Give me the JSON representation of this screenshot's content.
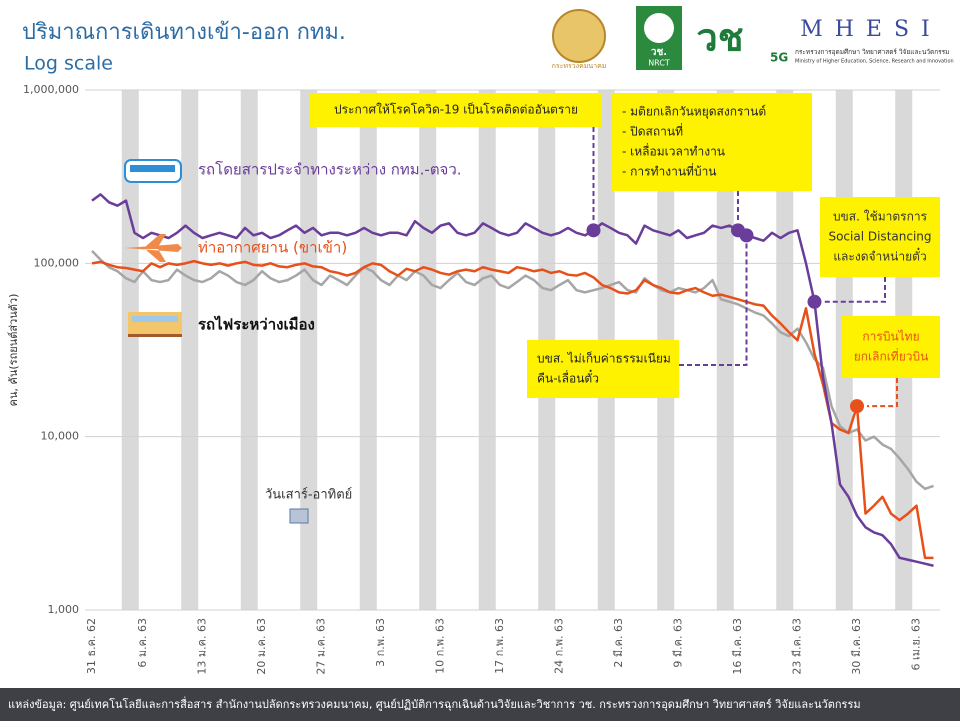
{
  "header": {
    "logos": [
      "กระทรวงคมนาคม",
      "วช.",
      "NRCT",
      "วช",
      "5G",
      "MHESI",
      "กระทรวงการอุดมศึกษา วิทยาศาสตร์ วิจัยและนวัตกรรม",
      "Ministry of Higher Education, Science, Research and Innovation"
    ]
  },
  "footer": {
    "source": "แหล่งข้อมูล:  ศูนย์เทคโนโลยีและการสื่อสาร สำนักงานปลัดกระทรวงคมนาคม, ศูนย์ปฏิบัติการฉุกเฉินด้านวิจัยและวิชาการ วช. กระทรวงการอุดมศึกษา วิทยาศาสตร์ วิจัยและนวัตกรรม"
  },
  "chart_data": {
    "type": "line",
    "title": "ปริมาณการเดินทางเข้า-ออก กทม.",
    "subtitle": "Log scale",
    "y_label": "คน, คัน(รถยนต์ส่วนตัว)",
    "log_y": true,
    "grid": true,
    "ylim": [
      1000,
      1000000
    ],
    "yticks": [
      {
        "value": 1000,
        "label": "1,000"
      },
      {
        "value": 10000,
        "label": "10,000"
      },
      {
        "value": 100000,
        "label": "100,000"
      },
      {
        "value": 1000000,
        "label": "1,000,000"
      }
    ],
    "categories": [
      "31 ธ.ค. 62",
      null,
      null,
      null,
      null,
      null,
      "6 ม.ค. 63",
      null,
      null,
      null,
      null,
      null,
      null,
      "13 ม.ค. 63",
      null,
      null,
      null,
      null,
      null,
      null,
      "20 ม.ค. 63",
      null,
      null,
      null,
      null,
      null,
      null,
      "27 ม.ค. 63",
      null,
      null,
      null,
      null,
      null,
      null,
      "3 ก.พ. 63",
      null,
      null,
      null,
      null,
      null,
      null,
      "10 ก.พ. 63",
      null,
      null,
      null,
      null,
      null,
      null,
      "17 ก.พ. 63",
      null,
      null,
      null,
      null,
      null,
      null,
      "24 ก.พ. 63",
      null,
      null,
      null,
      null,
      null,
      null,
      "2 มี.ค. 63",
      null,
      null,
      null,
      null,
      null,
      null,
      "9 มี.ค. 63",
      null,
      null,
      null,
      null,
      null,
      null,
      "16 มี.ค. 63",
      null,
      null,
      null,
      null,
      null,
      null,
      "23 มี.ค. 63",
      null,
      null,
      null,
      null,
      null,
      null,
      "30 มี.ค. 63",
      null,
      null,
      null,
      null,
      null,
      null,
      "6 เม.ย. 63",
      null,
      null
    ],
    "weekend": {
      "label": "วันเสาร์-อาทิตย์",
      "color": "#d9d9d9",
      "ranges": [
        [
          4,
          5
        ],
        [
          11,
          12
        ],
        [
          18,
          19
        ],
        [
          25,
          26
        ],
        [
          32,
          33
        ],
        [
          39,
          40
        ],
        [
          46,
          47
        ],
        [
          53,
          54
        ],
        [
          60,
          61
        ],
        [
          67,
          68
        ],
        [
          74,
          75
        ],
        [
          81,
          82
        ],
        [
          88,
          89
        ],
        [
          95,
          96
        ]
      ]
    },
    "series": [
      {
        "name": "รถโดยสารประจำทางระหว่าง กทม.-ตจว.",
        "color": "#6a3d9a",
        "values": [
          230000,
          250000,
          225000,
          215000,
          230000,
          150000,
          140000,
          150000,
          145000,
          140000,
          150000,
          165000,
          150000,
          140000,
          145000,
          150000,
          145000,
          140000,
          160000,
          145000,
          150000,
          140000,
          145000,
          155000,
          165000,
          150000,
          160000,
          145000,
          150000,
          150000,
          145000,
          150000,
          160000,
          150000,
          145000,
          150000,
          150000,
          145000,
          175000,
          160000,
          150000,
          165000,
          170000,
          150000,
          145000,
          150000,
          170000,
          160000,
          150000,
          145000,
          150000,
          170000,
          160000,
          150000,
          145000,
          150000,
          160000,
          150000,
          145000,
          155000,
          170000,
          160000,
          150000,
          145000,
          130000,
          165000,
          155000,
          150000,
          145000,
          155000,
          140000,
          145000,
          150000,
          165000,
          160000,
          165000,
          155000,
          145000,
          140000,
          135000,
          150000,
          140000,
          150000,
          155000,
          100000,
          60000,
          22000,
          12000,
          5300,
          4500,
          3500,
          3000,
          2800,
          2700,
          2400,
          2000,
          1950,
          1900,
          1850,
          1800
        ]
      },
      {
        "name": "ท่าอากาศยาน (ขาเข้า)",
        "color": "#e8501a",
        "values": [
          100000,
          102000,
          98000,
          95000,
          94000,
          92000,
          90000,
          100000,
          95000,
          100000,
          98000,
          100000,
          103000,
          100000,
          98000,
          100000,
          97000,
          100000,
          102000,
          98000,
          97000,
          100000,
          96000,
          95000,
          98000,
          100000,
          96000,
          95000,
          90000,
          88000,
          85000,
          88000,
          95000,
          100000,
          98000,
          90000,
          85000,
          93000,
          90000,
          95000,
          92000,
          88000,
          86000,
          90000,
          92000,
          90000,
          95000,
          92000,
          90000,
          88000,
          95000,
          93000,
          90000,
          92000,
          88000,
          90000,
          86000,
          85000,
          88000,
          83000,
          75000,
          72000,
          68000,
          67000,
          70000,
          80000,
          75000,
          72000,
          68000,
          67000,
          70000,
          72000,
          68000,
          65000,
          66000,
          64000,
          62000,
          60000,
          58000,
          57000,
          50000,
          45000,
          40000,
          36000,
          55000,
          30000,
          20000,
          12000,
          11000,
          10500,
          15000,
          3600,
          4000,
          4500,
          3600,
          3300,
          3600,
          4000,
          2000,
          2000
        ]
      },
      {
        "name": "รถไฟระหว่างเมือง",
        "color": "#a6a6a6",
        "values": [
          118000,
          105000,
          95000,
          90000,
          82000,
          78000,
          90000,
          80000,
          78000,
          80000,
          92000,
          85000,
          80000,
          78000,
          82000,
          90000,
          85000,
          78000,
          75000,
          80000,
          90000,
          82000,
          78000,
          80000,
          85000,
          92000,
          80000,
          75000,
          85000,
          80000,
          75000,
          85000,
          95000,
          90000,
          80000,
          75000,
          85000,
          80000,
          90000,
          85000,
          75000,
          72000,
          80000,
          88000,
          78000,
          75000,
          82000,
          85000,
          75000,
          72000,
          78000,
          85000,
          80000,
          72000,
          70000,
          75000,
          80000,
          70000,
          68000,
          70000,
          72000,
          75000,
          78000,
          70000,
          68000,
          82000,
          75000,
          70000,
          68000,
          72000,
          70000,
          68000,
          72000,
          80000,
          62000,
          60000,
          58000,
          55000,
          52000,
          50000,
          45000,
          40000,
          38000,
          42000,
          35000,
          28000,
          25000,
          15000,
          11500,
          10500,
          11000,
          9500,
          10000,
          9000,
          8500,
          7500,
          6500,
          5500,
          5000,
          5200
        ]
      }
    ],
    "annotations": [
      {
        "lines": [
          "ประกาศให้โรคโควิด-19 เป็นโรคติดต่ออันตราย"
        ],
        "target": [
          0,
          59
        ],
        "color": "#222222"
      },
      {
        "lines": [
          "- มติยกเลิกวันหยุดสงกรานต์",
          "- ปิดสถานที่",
          "- เหลื่อมเวลาทำงาน",
          "- การทำงานที่บ้าน"
        ],
        "target": [
          0,
          76
        ],
        "color": "#222222"
      },
      {
        "lines": [
          "บขส. ไม่เก็บค่าธรรมเนียม",
          "คืน-เลื่อนตั๋ว"
        ],
        "target": [
          0,
          77
        ],
        "color": "#222222"
      },
      {
        "lines": [
          "บขส. ใช้มาตรการ",
          "Social Distancing",
          "และงดจำหน่ายตั๋ว"
        ],
        "target": [
          0,
          85
        ],
        "color": "#333333"
      },
      {
        "lines": [
          "การบินไทย",
          "ยกเลิกเที่ยวบิน"
        ],
        "target": [
          1,
          90
        ],
        "color": "#e8501a"
      }
    ]
  }
}
